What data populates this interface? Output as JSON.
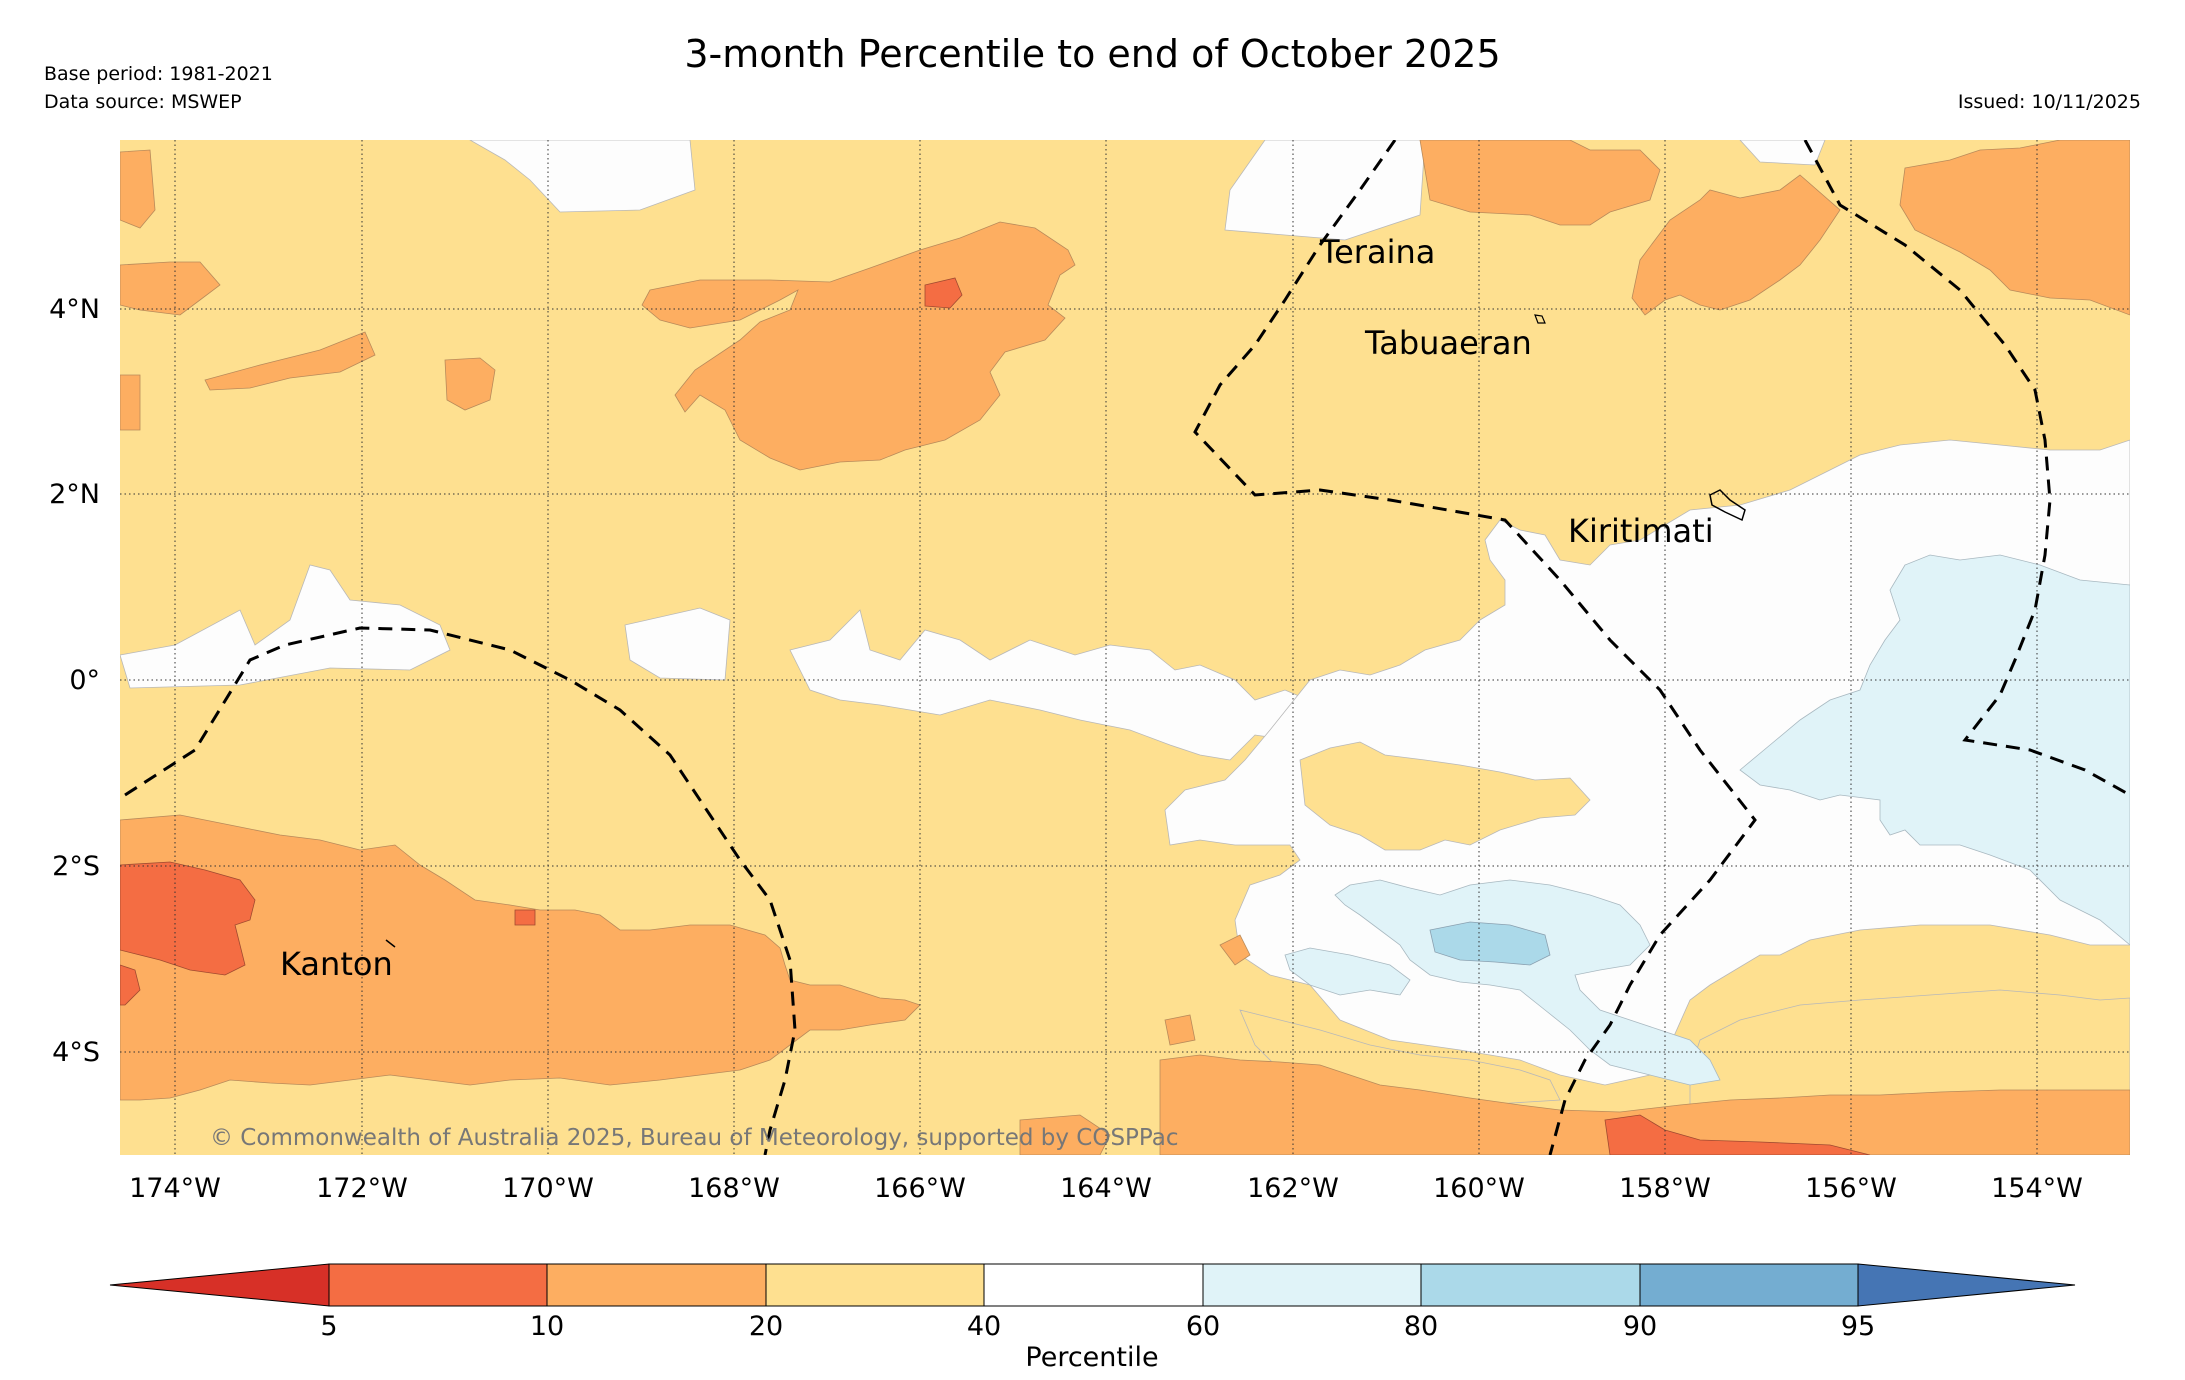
{
  "title": "3-month Percentile to end of October 2025",
  "base_period": "Base period: 1981-2021",
  "data_source": "Data source: MSWEP",
  "issued": "Issued: 10/11/2025",
  "copyright": "© Commonwealth of Australia 2025, Bureau of Meteorology, supported by COSPPac",
  "places": {
    "teraina": "Teraina",
    "tabuaeran": "Tabuaeran",
    "kiritimati": "Kiritimati",
    "kanton": "Kanton"
  },
  "axes": {
    "lon_labels": [
      "174°W",
      "172°W",
      "170°W",
      "168°W",
      "166°W",
      "164°W",
      "162°W",
      "160°W",
      "158°W",
      "156°W",
      "154°W"
    ],
    "lat_labels": [
      "4°N",
      "2°N",
      "0°",
      "2°S",
      "4°S"
    ]
  },
  "colorbar": {
    "label": "Percentile",
    "ticks": [
      "5",
      "10",
      "20",
      "40",
      "60",
      "80",
      "90",
      "95"
    ],
    "colors": {
      "below5": "#d73027",
      "p5_10": "#f46d43",
      "p10_20": "#fdae61",
      "p20_40": "#fee090",
      "p40_60": "#ffffff",
      "p60_80": "#e0f3f8",
      "p80_90": "#abd9e9",
      "p90_95": "#74add1",
      "above95": "#4575b4"
    }
  }
}
